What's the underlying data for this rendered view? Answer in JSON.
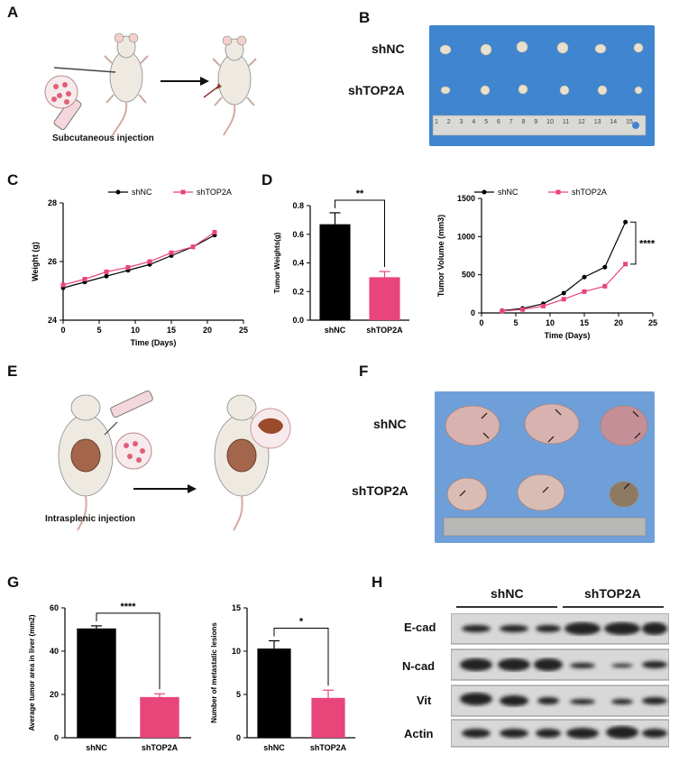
{
  "panels": {
    "A": {
      "label": "A",
      "caption": "Subcutaneous injection"
    },
    "B": {
      "label": "B",
      "row1": "shNC",
      "row2": "shTOP2A",
      "ruler_ticks": [
        "1",
        "2",
        "3",
        "4",
        "5",
        "6",
        "7",
        "8",
        "9",
        "10",
        "11",
        "12",
        "13",
        "14",
        "15"
      ]
    },
    "C": {
      "label": "C"
    },
    "D": {
      "label": "D"
    },
    "E": {
      "label": "E",
      "caption": "Intrasplenic injection"
    },
    "F": {
      "label": "F",
      "row1": "shNC",
      "row2": "shTOP2A"
    },
    "G": {
      "label": "G"
    },
    "H": {
      "label": "H",
      "group1": "shNC",
      "group2": "shTOP2A",
      "rows": [
        "E-cad",
        "N-cad",
        "Vit",
        "Actin"
      ]
    }
  },
  "colors": {
    "shNC": "#000000",
    "shTOP2A": "#e8457a",
    "background_blue": "#4a8fd6"
  },
  "chart_data": [
    {
      "id": "C",
      "type": "line",
      "title": "",
      "xlabel": "Time (Days)",
      "ylabel": "Weight (g)",
      "xlim": [
        0,
        25
      ],
      "ylim": [
        24,
        28
      ],
      "xticks": [
        "0",
        "5",
        "10",
        "15",
        "20",
        "25"
      ],
      "yticks": [
        "24",
        "26",
        "28"
      ],
      "series": [
        {
          "name": "shNC",
          "x": [
            0,
            3,
            6,
            9,
            12,
            15,
            18,
            21
          ],
          "y": [
            25.1,
            25.3,
            25.5,
            25.7,
            25.9,
            26.2,
            26.5,
            26.9
          ]
        },
        {
          "name": "shTOP2A",
          "x": [
            0,
            3,
            6,
            9,
            12,
            15,
            18,
            21
          ],
          "y": [
            25.2,
            25.4,
            25.65,
            25.8,
            26.0,
            26.3,
            26.5,
            27.0
          ]
        }
      ]
    },
    {
      "id": "D1",
      "type": "bar",
      "title": "",
      "xlabel": "",
      "ylabel": "Tumor Weights(g)",
      "ylim": [
        0,
        0.8
      ],
      "yticks": [
        "0.0",
        "0.2",
        "0.4",
        "0.6",
        "0.8"
      ],
      "categories": [
        "shNC",
        "shTOP2A"
      ],
      "values": [
        0.67,
        0.3
      ],
      "errors": [
        0.08,
        0.04
      ],
      "annotation": "**"
    },
    {
      "id": "D2",
      "type": "line",
      "title": "",
      "xlabel": "Time (Days)",
      "ylabel": "Tumor Volume (mm3)",
      "xlim": [
        0,
        25
      ],
      "ylim": [
        0,
        1500
      ],
      "xticks": [
        "0",
        "5",
        "10",
        "15",
        "20",
        "25"
      ],
      "yticks": [
        "0",
        "500",
        "1000",
        "1500"
      ],
      "series": [
        {
          "name": "shNC",
          "x": [
            3,
            6,
            9,
            12,
            15,
            18,
            21
          ],
          "y": [
            30,
            60,
            120,
            260,
            470,
            600,
            1190
          ]
        },
        {
          "name": "shTOP2A",
          "x": [
            3,
            6,
            9,
            12,
            15,
            18,
            21
          ],
          "y": [
            25,
            45,
            90,
            180,
            280,
            350,
            640
          ]
        }
      ],
      "annotation": "****"
    },
    {
      "id": "G1",
      "type": "bar",
      "title": "",
      "xlabel": "",
      "ylabel": "Average tumor area in liver (mm2)",
      "ylim": [
        0,
        60
      ],
      "yticks": [
        "0",
        "20",
        "40",
        "60"
      ],
      "categories": [
        "shNC",
        "shTOP2A"
      ],
      "values": [
        50.5,
        18.8
      ],
      "errors": [
        1.2,
        1.5
      ],
      "annotation": "****"
    },
    {
      "id": "G2",
      "type": "bar",
      "title": "",
      "xlabel": "",
      "ylabel": "Number of metastatic lesions",
      "ylim": [
        0,
        15
      ],
      "yticks": [
        "0",
        "5",
        "10",
        "15"
      ],
      "categories": [
        "shNC",
        "shTOP2A"
      ],
      "values": [
        10.3,
        4.6
      ],
      "errors": [
        0.9,
        0.9
      ],
      "annotation": "*"
    }
  ]
}
